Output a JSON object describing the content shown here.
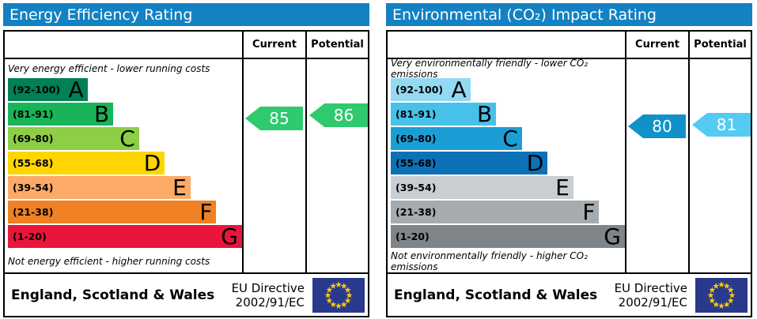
{
  "flag": {
    "background": "#29398c",
    "star_color": "#ffcc00"
  },
  "chart_data": [
    {
      "type": "bar",
      "title": "Energy Efficiency Rating",
      "columns": [
        "Current",
        "Potential"
      ],
      "top_caption": "Very energy efficient - lower running costs",
      "bottom_caption": "Not energy efficient - higher running costs",
      "bands": [
        {
          "letter": "A",
          "range_text": "(92-100)",
          "min": 92,
          "max": 100,
          "width_pct": 34,
          "color": "#008054"
        },
        {
          "letter": "B",
          "range_text": "(81-91)",
          "min": 81,
          "max": 91,
          "width_pct": 45,
          "color": "#19b459"
        },
        {
          "letter": "C",
          "range_text": "(69-80)",
          "min": 69,
          "max": 80,
          "width_pct": 56,
          "color": "#8dce46"
        },
        {
          "letter": "D",
          "range_text": "(55-68)",
          "min": 55,
          "max": 68,
          "width_pct": 67,
          "color": "#ffd500"
        },
        {
          "letter": "E",
          "range_text": "(39-54)",
          "min": 39,
          "max": 54,
          "width_pct": 78,
          "color": "#fcaa65"
        },
        {
          "letter": "F",
          "range_text": "(21-38)",
          "min": 21,
          "max": 38,
          "width_pct": 89,
          "color": "#ef8023"
        },
        {
          "letter": "G",
          "range_text": "(1-20)",
          "min": 1,
          "max": 20,
          "width_pct": 100,
          "color": "#e9153b"
        }
      ],
      "current": 85,
      "current_band": "B",
      "current_color": "#2fc96e",
      "potential": 86,
      "potential_band": "B",
      "potential_color": "#2fc96e",
      "footer_region": "England, Scotland & Wales",
      "footer_directive": "EU Directive\n2002/91/EC"
    },
    {
      "type": "bar",
      "title": "Environmental (CO₂) Impact Rating",
      "columns": [
        "Current",
        "Potential"
      ],
      "top_caption": "Very environmentally friendly - lower CO₂ emissions",
      "bottom_caption": "Not environmentally friendly - higher CO₂ emissions",
      "bands": [
        {
          "letter": "A",
          "range_text": "(92-100)",
          "min": 92,
          "max": 100,
          "width_pct": 34,
          "color": "#93d9f2"
        },
        {
          "letter": "B",
          "range_text": "(81-91)",
          "min": 81,
          "max": 91,
          "width_pct": 45,
          "color": "#48c1ea"
        },
        {
          "letter": "C",
          "range_text": "(69-80)",
          "min": 69,
          "max": 80,
          "width_pct": 56,
          "color": "#1b9ed6"
        },
        {
          "letter": "D",
          "range_text": "(55-68)",
          "min": 55,
          "max": 68,
          "width_pct": 67,
          "color": "#0d71b8"
        },
        {
          "letter": "E",
          "range_text": "(39-54)",
          "min": 39,
          "max": 54,
          "width_pct": 78,
          "color": "#c9ced2"
        },
        {
          "letter": "F",
          "range_text": "(21-38)",
          "min": 21,
          "max": 38,
          "width_pct": 89,
          "color": "#a5abae"
        },
        {
          "letter": "G",
          "range_text": "(1-20)",
          "min": 1,
          "max": 20,
          "width_pct": 100,
          "color": "#7e8488"
        }
      ],
      "current": 80,
      "current_band": "C",
      "current_color": "#1092c9",
      "potential": 81,
      "potential_band": "B",
      "potential_color": "#53cbf2",
      "footer_region": "England, Scotland & Wales",
      "footer_directive": "EU Directive\n2002/91/EC"
    }
  ]
}
